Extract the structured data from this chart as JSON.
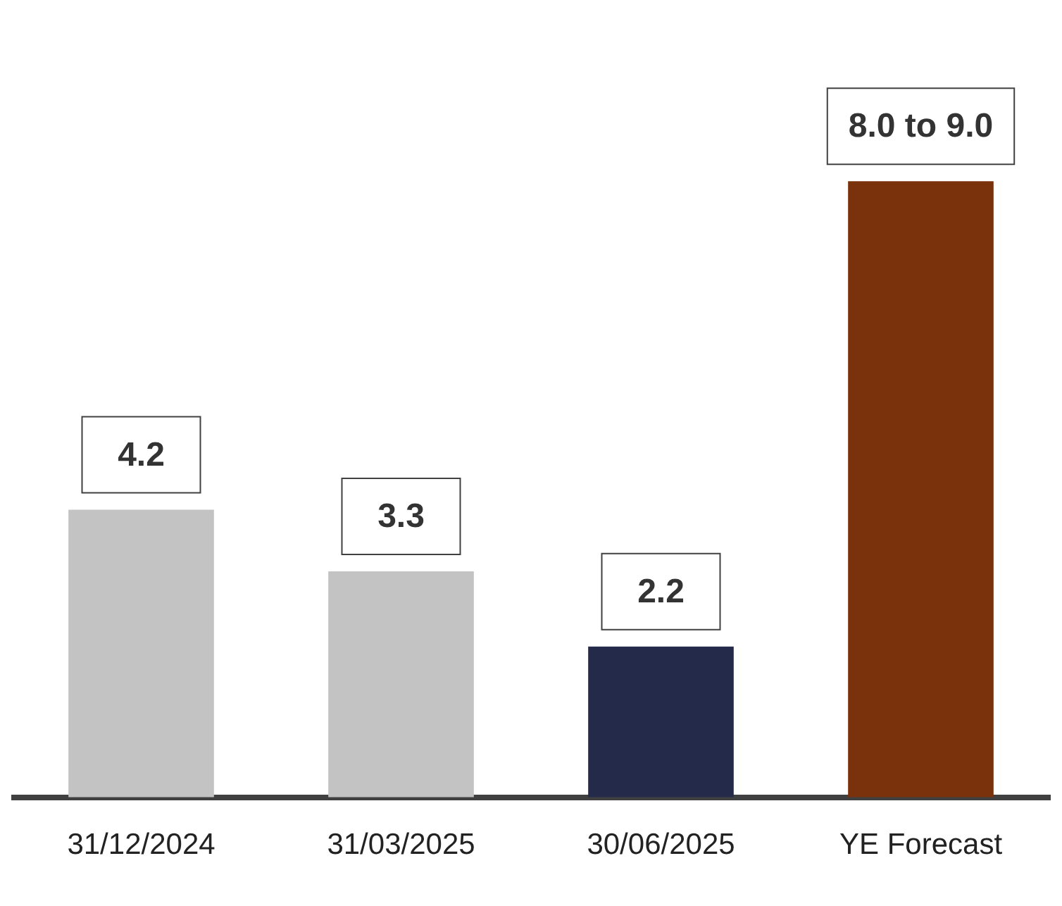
{
  "chart_data": {
    "type": "bar",
    "categories": [
      "31/12/2024",
      "31/03/2025",
      "30/06/2025",
      "YE Forecast"
    ],
    "values": [
      4.2,
      3.3,
      2.2,
      9.0
    ],
    "colors": [
      "#c3c3c3",
      "#c3c3c3",
      "#232a4a",
      "#7a320c"
    ],
    "value_labels": [
      "4.2",
      "3.3",
      "2.2",
      null
    ],
    "annotations": [
      {
        "text": "8.0 to 9.0",
        "x": "YE Forecast",
        "y": 9.0
      }
    ],
    "grid": false,
    "legend": false
  }
}
